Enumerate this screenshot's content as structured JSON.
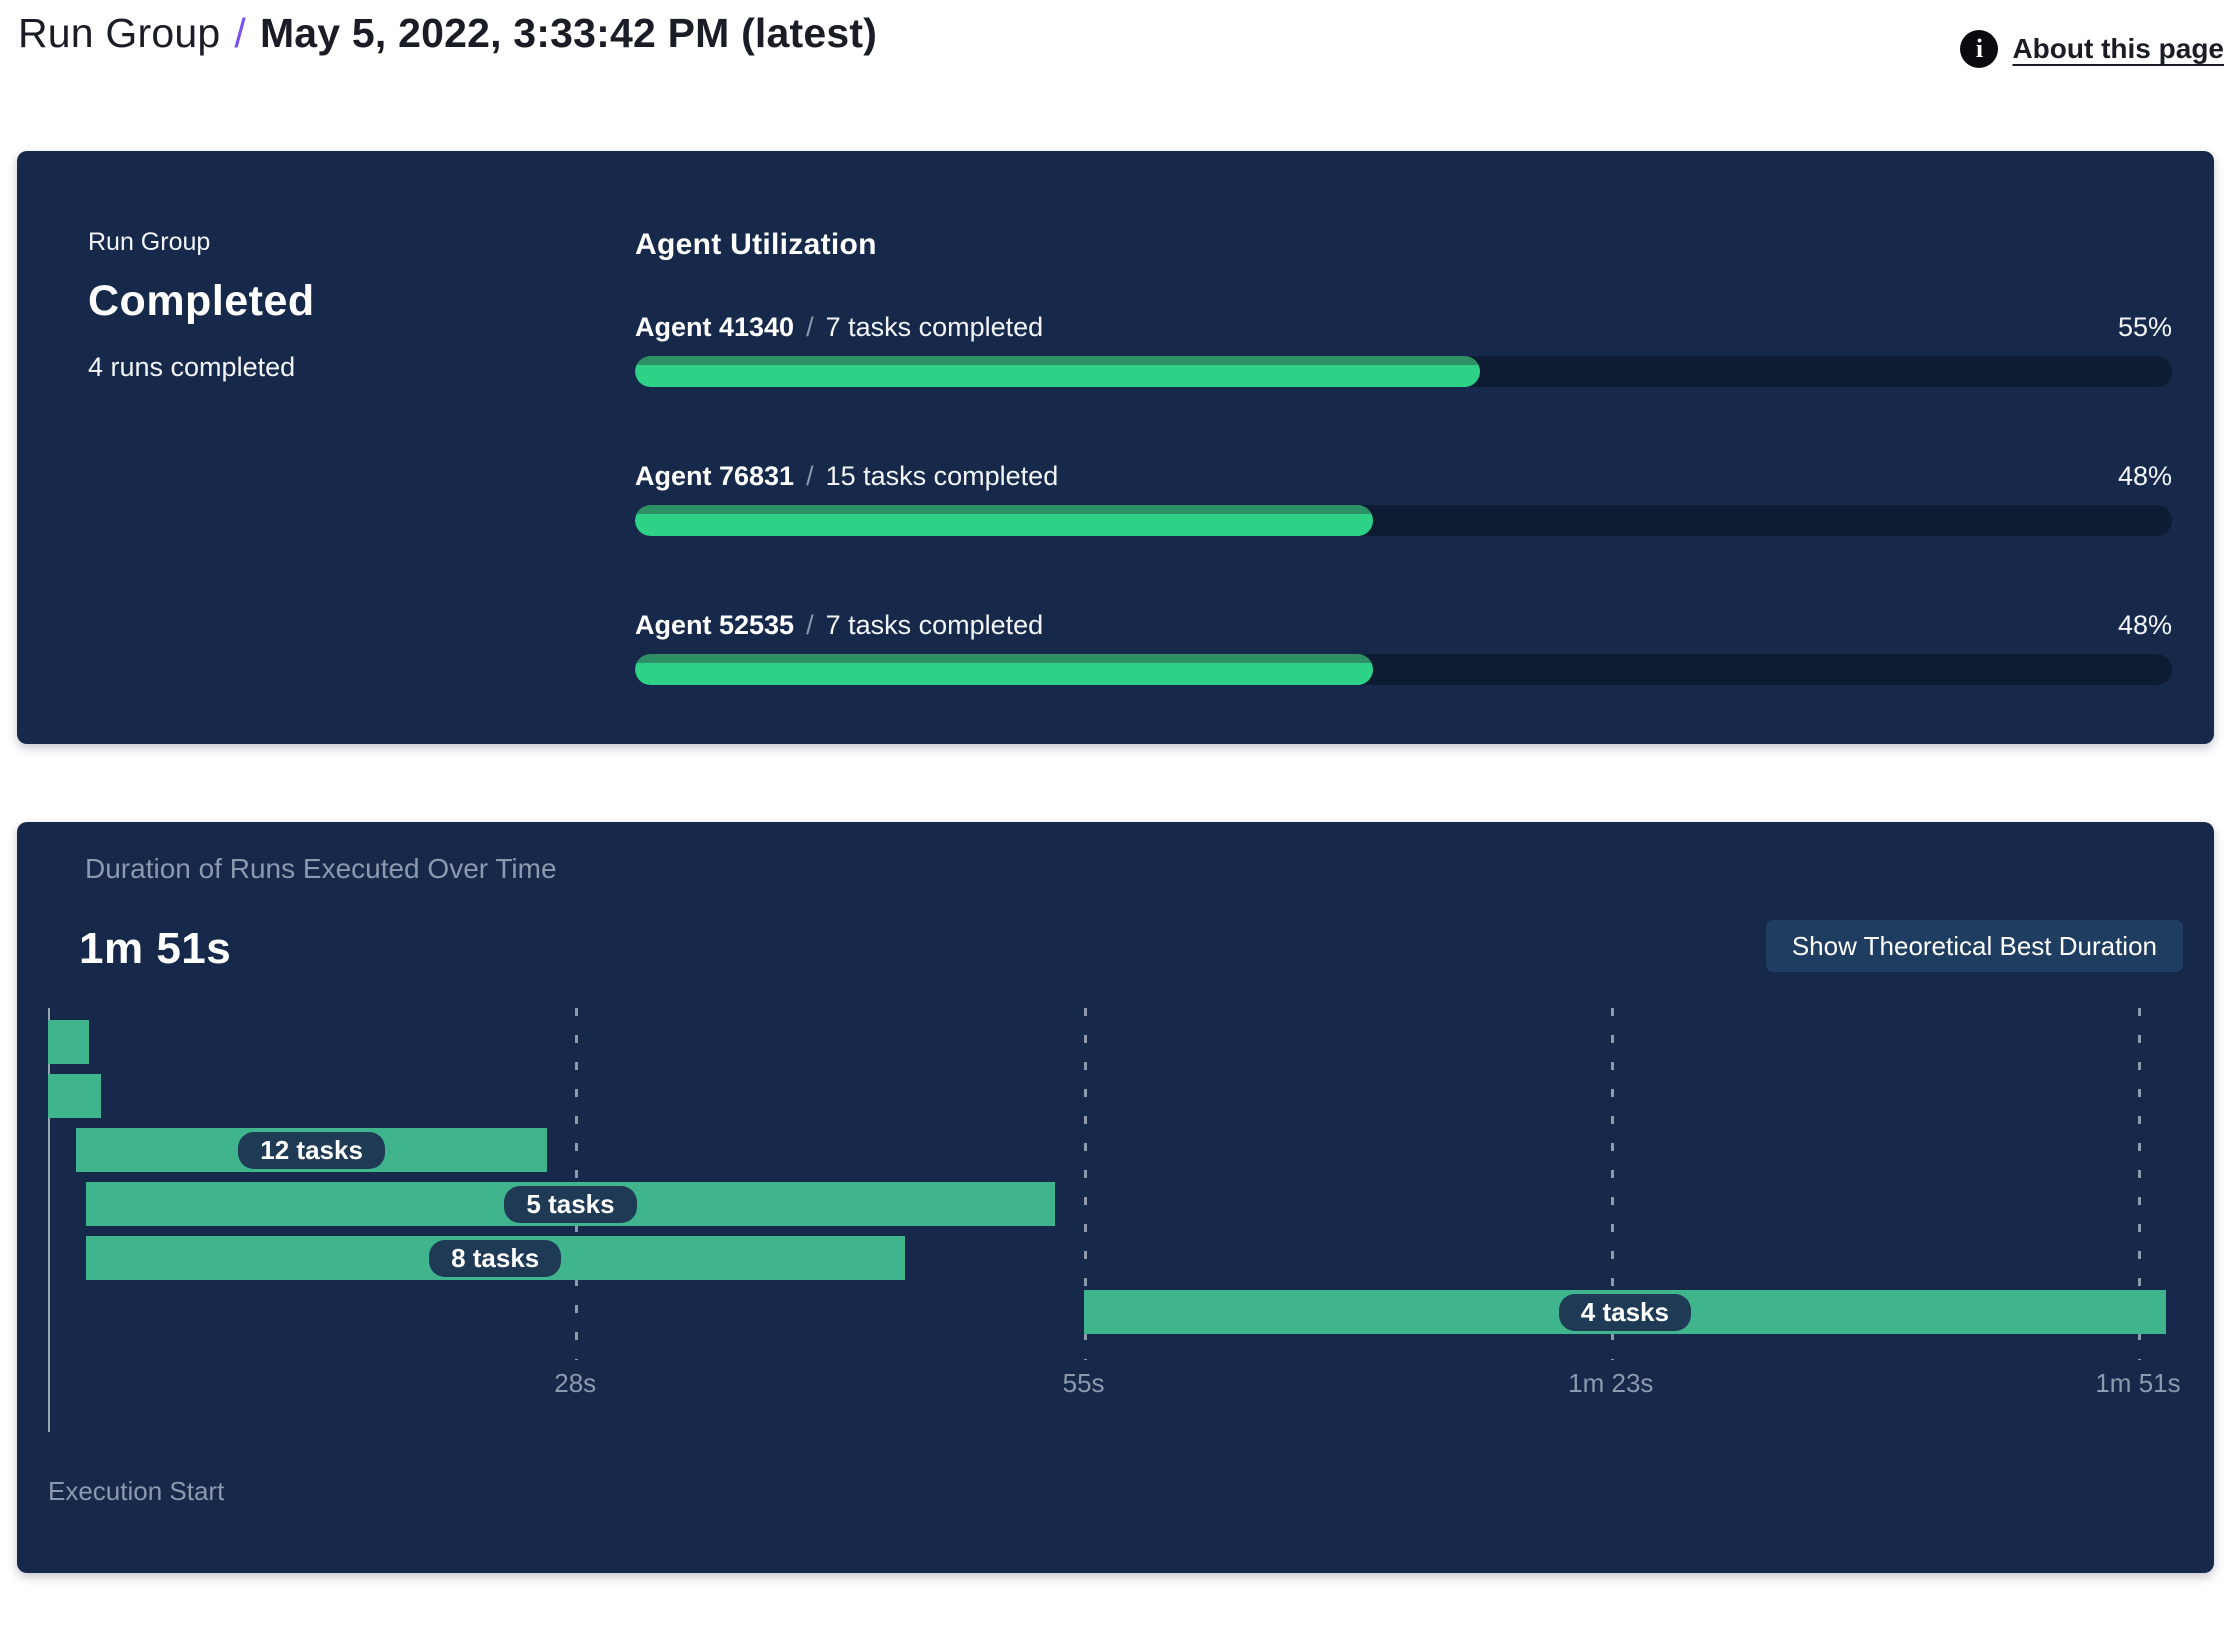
{
  "header": {
    "breadcrumb": "Run Group",
    "separator": "/",
    "title": "May 5, 2022, 3:33:42 PM (latest)",
    "about_label": "About this page",
    "info_icon_glyph": "i"
  },
  "summary": {
    "eyebrow": "Run Group",
    "status": "Completed",
    "runs_completed": "4 runs completed",
    "utilization_heading": "Agent Utilization",
    "name_task_separator": "/"
  },
  "duration": {
    "heading": "Duration of Runs Executed Over Time",
    "total": "1m 51s",
    "button_label": "Show Theoretical Best Duration",
    "execution_start_label": "Execution Start"
  },
  "colors": {
    "panel_background": "#17294a",
    "progress_track": "#0e1c33",
    "progress_fill": "#2ed286",
    "progress_fill_rim": "#2e9166",
    "gantt_bar": "#40b48c",
    "task_pill_background": "#1e3a55",
    "accent_purple": "#7a50f0",
    "muted_text": "#8c99ae",
    "button_background": "#1e3d61",
    "header_text": "#1b1d26"
  },
  "chart_data": [
    {
      "type": "bar",
      "subtype": "horizontal-progress",
      "title": "Agent Utilization",
      "categories": [
        "Agent 41340",
        "Agent 76831",
        "Agent 52535"
      ],
      "annotations": [
        "7 tasks completed",
        "15 tasks completed",
        "7 tasks completed"
      ],
      "values": [
        55,
        48,
        48
      ],
      "value_labels": [
        "55%",
        "48%",
        "48%"
      ],
      "xlim": [
        0,
        100
      ],
      "legend": "none",
      "grid": false
    },
    {
      "type": "bar",
      "subtype": "gantt-timeline",
      "title": "Duration of Runs Executed Over Time",
      "total_duration_label": "1m 51s",
      "xlabel": "Execution Start",
      "x_max_seconds": 112.7,
      "x_ticks": [
        {
          "seconds": 28,
          "label": "28s"
        },
        {
          "seconds": 55,
          "label": "55s"
        },
        {
          "seconds": 83,
          "label": "1m 23s"
        },
        {
          "seconds": 111,
          "label": "1m 51s"
        }
      ],
      "runs": [
        {
          "start_seconds": 0,
          "end_seconds": 2.2,
          "label": ""
        },
        {
          "start_seconds": 0,
          "end_seconds": 2.8,
          "label": ""
        },
        {
          "start_seconds": 1.5,
          "end_seconds": 26.5,
          "label": "12 tasks"
        },
        {
          "start_seconds": 2,
          "end_seconds": 53.5,
          "label": "5 tasks"
        },
        {
          "start_seconds": 2,
          "end_seconds": 45.5,
          "label": "8 tasks"
        },
        {
          "start_seconds": 55,
          "end_seconds": 112.5,
          "label": "4 tasks"
        }
      ],
      "grid": "dashed-vertical",
      "legend": "none"
    }
  ]
}
